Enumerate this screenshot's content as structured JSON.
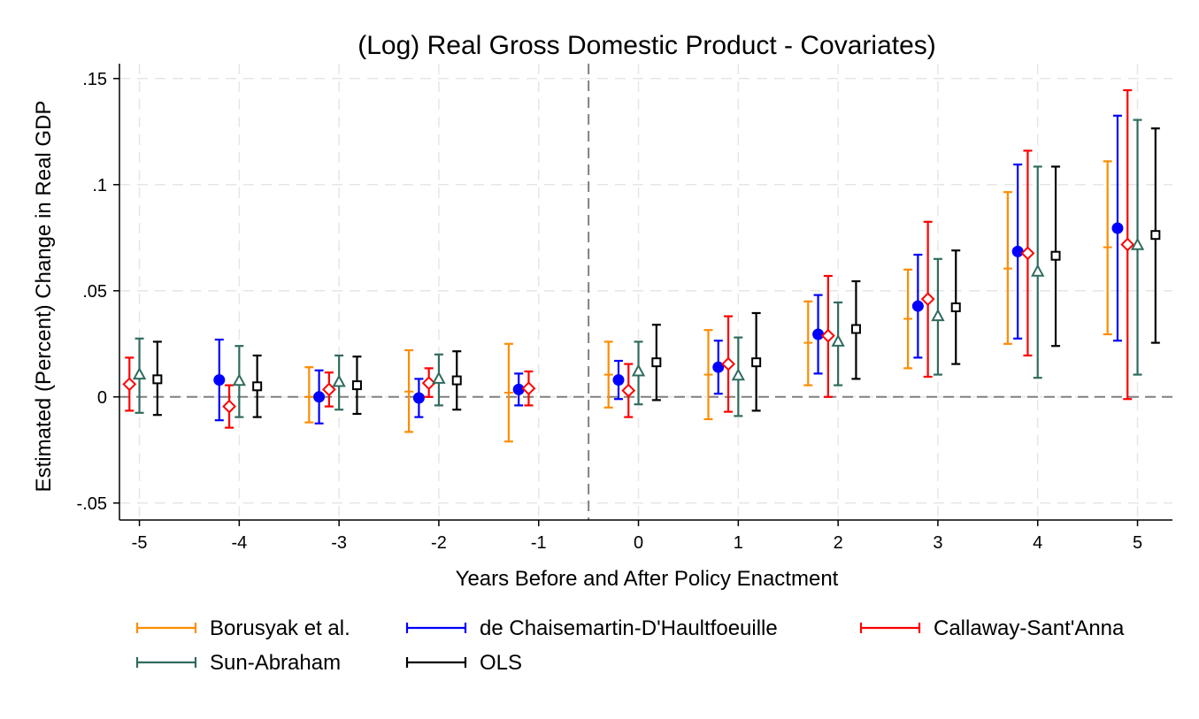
{
  "chart_data": {
    "type": "scatter",
    "title": "(Log) Real Gross Domestic Product - Covariates)",
    "xlabel": "Years Before and After Policy Enactment",
    "ylabel": "Estimated (Percent) Change in Real GDP",
    "xlim": [
      -5.2,
      5.35
    ],
    "ylim": [
      -0.058,
      0.157
    ],
    "x_ticks": [
      -5,
      -4,
      -3,
      -2,
      -1,
      0,
      1,
      2,
      3,
      4,
      5
    ],
    "x_tick_labels": [
      "-5",
      "-4",
      "-3",
      "-2",
      "-1",
      "0",
      "1",
      "2",
      "3",
      "4",
      "5"
    ],
    "y_ticks": [
      0.15,
      0.1,
      0.05,
      0,
      -0.05
    ],
    "y_tick_labels": [
      ".15",
      ".1",
      ".05",
      "0",
      "-.05"
    ],
    "grid": true,
    "policy_line_x": -0.5,
    "legend_position": "bottom",
    "series": [
      {
        "name": "Borusyak et al.",
        "color": "#FF8C00",
        "marker": "tick",
        "x_offset": -0.3,
        "points": [
          {
            "x": -4,
            "y": null,
            "lo": null,
            "hi": null
          },
          {
            "x": -3,
            "y": 0.0,
            "lo": -0.012,
            "hi": 0.014
          },
          {
            "x": -2,
            "y": 0.0025,
            "lo": -0.0165,
            "hi": 0.022
          },
          {
            "x": -1,
            "y": 0.002,
            "lo": -0.021,
            "hi": 0.025
          },
          {
            "x": 0,
            "y": 0.0105,
            "lo": -0.005,
            "hi": 0.026
          },
          {
            "x": 1,
            "y": 0.0105,
            "lo": -0.0105,
            "hi": 0.0315
          },
          {
            "x": 2,
            "y": 0.0255,
            "lo": 0.0055,
            "hi": 0.045
          },
          {
            "x": 3,
            "y": 0.0368,
            "lo": 0.0135,
            "hi": 0.06
          },
          {
            "x": 4,
            "y": 0.0605,
            "lo": 0.025,
            "hi": 0.0965
          },
          {
            "x": 5,
            "y": 0.0705,
            "lo": 0.0295,
            "hi": 0.111
          }
        ]
      },
      {
        "name": "de Chaisemartin-D'Haultfoeuille",
        "color": "#0000FF",
        "marker": "circle",
        "x_offset": -0.2,
        "points": [
          {
            "x": -4,
            "y": 0.008,
            "lo": -0.011,
            "hi": 0.027
          },
          {
            "x": -3,
            "y": 0.0,
            "lo": -0.0125,
            "hi": 0.0125
          },
          {
            "x": -2,
            "y": -0.0005,
            "lo": -0.0095,
            "hi": 0.0085
          },
          {
            "x": -1,
            "y": 0.0035,
            "lo": -0.004,
            "hi": 0.011
          },
          {
            "x": 0,
            "y": 0.008,
            "lo": -0.001,
            "hi": 0.017
          },
          {
            "x": 1,
            "y": 0.014,
            "lo": 0.0015,
            "hi": 0.0265
          },
          {
            "x": 2,
            "y": 0.0295,
            "lo": 0.011,
            "hi": 0.048
          },
          {
            "x": 3,
            "y": 0.0428,
            "lo": 0.0185,
            "hi": 0.067
          },
          {
            "x": 4,
            "y": 0.0685,
            "lo": 0.0275,
            "hi": 0.1095
          },
          {
            "x": 5,
            "y": 0.0795,
            "lo": 0.0265,
            "hi": 0.1325
          }
        ]
      },
      {
        "name": "Callaway-Sant'Anna",
        "color": "#FF0000",
        "marker": "diamond",
        "x_offset": -0.1,
        "points": [
          {
            "x": -5,
            "y": 0.006,
            "lo": -0.0065,
            "hi": 0.0185
          },
          {
            "x": -4,
            "y": -0.0045,
            "lo": -0.0145,
            "hi": 0.0055
          },
          {
            "x": -3,
            "y": 0.0035,
            "lo": -0.0045,
            "hi": 0.0115
          },
          {
            "x": -2,
            "y": 0.0065,
            "lo": 0.0,
            "hi": 0.0135
          },
          {
            "x": -1,
            "y": 0.004,
            "lo": -0.004,
            "hi": 0.012
          },
          {
            "x": 0,
            "y": 0.003,
            "lo": -0.0095,
            "hi": 0.0155
          },
          {
            "x": 1,
            "y": 0.0155,
            "lo": -0.007,
            "hi": 0.038
          },
          {
            "x": 2,
            "y": 0.0288,
            "lo": 0.0,
            "hi": 0.057
          },
          {
            "x": 3,
            "y": 0.0461,
            "lo": 0.0095,
            "hi": 0.0825
          },
          {
            "x": 4,
            "y": 0.0677,
            "lo": 0.0195,
            "hi": 0.116
          },
          {
            "x": 5,
            "y": 0.0718,
            "lo": -0.001,
            "hi": 0.1445
          }
        ]
      },
      {
        "name": "Sun-Abraham",
        "color": "#2F6B5E",
        "marker": "triangle",
        "x_offset": 0.0,
        "points": [
          {
            "x": -5,
            "y": 0.0105,
            "lo": -0.0075,
            "hi": 0.0275
          },
          {
            "x": -4,
            "y": 0.0075,
            "lo": -0.0095,
            "hi": 0.024
          },
          {
            "x": -3,
            "y": 0.007,
            "lo": -0.006,
            "hi": 0.0195
          },
          {
            "x": -2,
            "y": 0.0085,
            "lo": -0.004,
            "hi": 0.02
          },
          {
            "x": -1,
            "y": null,
            "lo": null,
            "hi": null
          },
          {
            "x": 0,
            "y": 0.012,
            "lo": -0.0035,
            "hi": 0.026
          },
          {
            "x": 1,
            "y": 0.01,
            "lo": -0.009,
            "hi": 0.028
          },
          {
            "x": 2,
            "y": 0.026,
            "lo": 0.0055,
            "hi": 0.0445
          },
          {
            "x": 3,
            "y": 0.038,
            "lo": 0.0105,
            "hi": 0.065
          },
          {
            "x": 4,
            "y": 0.059,
            "lo": 0.009,
            "hi": 0.1085
          },
          {
            "x": 5,
            "y": 0.0715,
            "lo": 0.0105,
            "hi": 0.1305
          }
        ]
      },
      {
        "name": "OLS",
        "color": "#000000",
        "marker": "square",
        "x_offset": 0.18,
        "points": [
          {
            "x": -5,
            "y": 0.0083,
            "lo": -0.0085,
            "hi": 0.026
          },
          {
            "x": -4,
            "y": 0.005,
            "lo": -0.0095,
            "hi": 0.0195
          },
          {
            "x": -3,
            "y": 0.0055,
            "lo": -0.008,
            "hi": 0.019
          },
          {
            "x": -2,
            "y": 0.0078,
            "lo": -0.006,
            "hi": 0.0215
          },
          {
            "x": -1,
            "y": null,
            "lo": null,
            "hi": null
          },
          {
            "x": 0,
            "y": 0.0163,
            "lo": -0.0015,
            "hi": 0.034
          },
          {
            "x": 1,
            "y": 0.0163,
            "lo": -0.0065,
            "hi": 0.0395
          },
          {
            "x": 2,
            "y": 0.032,
            "lo": 0.0085,
            "hi": 0.0545
          },
          {
            "x": 3,
            "y": 0.0422,
            "lo": 0.0155,
            "hi": 0.069
          },
          {
            "x": 4,
            "y": 0.0665,
            "lo": 0.024,
            "hi": 0.1085
          },
          {
            "x": 5,
            "y": 0.0763,
            "lo": 0.0255,
            "hi": 0.1265
          }
        ]
      }
    ]
  }
}
